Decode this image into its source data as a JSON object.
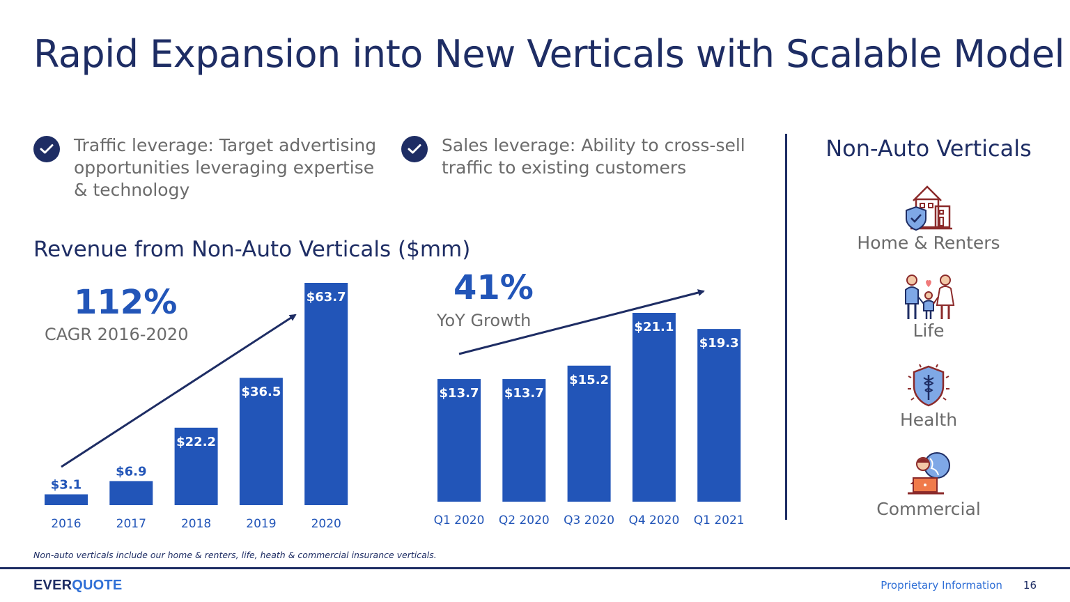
{
  "slide": {
    "title": "Rapid Expansion into New Verticals with Scalable Model",
    "bullets": [
      {
        "lines": [
          "Traffic leverage: Target advertising",
          "opportunities leveraging expertise",
          "& technology"
        ]
      },
      {
        "lines": [
          "Sales leverage: Ability to cross-sell",
          "traffic to existing customers"
        ]
      }
    ],
    "section_title": "Revenue from Non-Auto Verticals ($mm)",
    "footnote": "Non-auto verticals include our home & renters, life, heath & commercial insurance verticals."
  },
  "stats": {
    "cagr_value": "112%",
    "cagr_label": "CAGR 2016-2020",
    "yoy_value": "41%",
    "yoy_label": "YoY Growth"
  },
  "chart_data": [
    {
      "type": "bar",
      "categories": [
        "2016",
        "2017",
        "2018",
        "2019",
        "2020"
      ],
      "values": [
        3.1,
        6.9,
        22.2,
        36.5,
        63.7
      ],
      "labels": [
        "$3.1",
        "$6.9",
        "$22.2",
        "$36.5",
        "$63.7"
      ],
      "color": "#2255b8",
      "trend_arrow": true
    },
    {
      "type": "bar",
      "categories": [
        "Q1 2020",
        "Q2 2020",
        "Q3 2020",
        "Q4 2020",
        "Q1 2021"
      ],
      "values": [
        13.7,
        13.7,
        15.2,
        21.1,
        19.3
      ],
      "labels": [
        "$13.7",
        "$13.7",
        "$15.2",
        "$21.1",
        "$19.3"
      ],
      "color": "#2255b8",
      "trend_arrow": true
    }
  ],
  "sidebar": {
    "title": "Non-Auto Verticals",
    "items": [
      {
        "label": "Home & Renters",
        "icon": "home-shield-icon"
      },
      {
        "label": "Life",
        "icon": "family-icon"
      },
      {
        "label": "Health",
        "icon": "health-shield-icon"
      },
      {
        "label": "Commercial",
        "icon": "business-person-icon"
      }
    ]
  },
  "footer": {
    "logo_part1": "EVER",
    "logo_part2": "QUOTE",
    "info": "Proprietary Information",
    "page": "16"
  }
}
